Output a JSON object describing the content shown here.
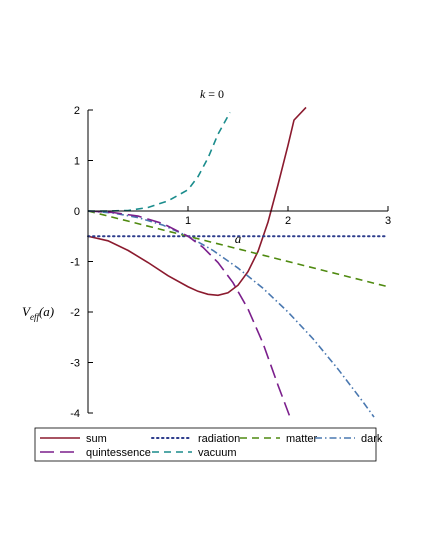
{
  "chart_data": {
    "type": "line",
    "title": "k = 0",
    "title_parts": {
      "var": "k",
      "eq": " = 0"
    },
    "xlabel": "a",
    "ylabel": "V_eff(a)",
    "ylabel_parts": {
      "base": "V",
      "sub": "eff",
      "arg": "(a)"
    },
    "xlim": [
      0,
      3
    ],
    "ylim": [
      -4,
      2
    ],
    "x_ticks": [
      {
        "value": 0,
        "label": ""
      },
      {
        "value": 1,
        "label": "1"
      },
      {
        "value": 2,
        "label": "2"
      },
      {
        "value": 3,
        "label": "3"
      }
    ],
    "y_ticks": [
      {
        "value": 2,
        "label": "2"
      },
      {
        "value": 1,
        "label": "1"
      },
      {
        "value": 0,
        "label": "0"
      },
      {
        "value": -1,
        "label": "-1"
      },
      {
        "value": -2,
        "label": "-2"
      },
      {
        "value": -3,
        "label": "-3"
      },
      {
        "value": -4,
        "label": "-4"
      }
    ],
    "grid": false,
    "legend_position": "bottom",
    "series": [
      {
        "name": "sum",
        "color": "#8b1a2e",
        "style": "solid",
        "points": [
          [
            0,
            -0.5
          ],
          [
            0.2,
            -0.59
          ],
          [
            0.4,
            -0.78
          ],
          [
            0.6,
            -1.02
          ],
          [
            0.8,
            -1.28
          ],
          [
            1.0,
            -1.5
          ],
          [
            1.1,
            -1.59
          ],
          [
            1.2,
            -1.65
          ],
          [
            1.3,
            -1.67
          ],
          [
            1.4,
            -1.62
          ],
          [
            1.5,
            -1.47
          ],
          [
            1.6,
            -1.2
          ],
          [
            1.7,
            -0.8
          ],
          [
            1.8,
            -0.22
          ],
          [
            1.9,
            0.52
          ],
          [
            2.0,
            1.3
          ],
          [
            2.06,
            1.8
          ],
          [
            2.18,
            2.05
          ]
        ]
      },
      {
        "name": "radiation",
        "color": "#2c3c8c",
        "style": "dotted",
        "points": [
          [
            0,
            -0.5
          ],
          [
            3,
            -0.5
          ]
        ]
      },
      {
        "name": "matter",
        "color": "#4f8a10",
        "style": "dashed",
        "points": [
          [
            0,
            0
          ],
          [
            3,
            -1.5
          ]
        ]
      },
      {
        "name": "dark",
        "color": "#4a78b0",
        "style": "dashdot",
        "points": [
          [
            0,
            0
          ],
          [
            0.25,
            -0.04
          ],
          [
            0.5,
            -0.13
          ],
          [
            0.75,
            -0.28
          ],
          [
            1.0,
            -0.5
          ],
          [
            1.25,
            -0.78
          ],
          [
            1.5,
            -1.13
          ],
          [
            1.75,
            -1.53
          ],
          [
            2.0,
            -2.0
          ],
          [
            2.25,
            -2.53
          ],
          [
            2.5,
            -3.13
          ],
          [
            2.75,
            -3.78
          ],
          [
            2.86,
            -4.08
          ]
        ]
      },
      {
        "name": "quintessence",
        "color": "#7b1f8c",
        "style": "longdash",
        "points": [
          [
            0,
            0
          ],
          [
            0.25,
            -0.03
          ],
          [
            0.5,
            -0.1
          ],
          [
            0.75,
            -0.25
          ],
          [
            1.0,
            -0.5
          ],
          [
            1.15,
            -0.72
          ],
          [
            1.3,
            -1.02
          ],
          [
            1.45,
            -1.42
          ],
          [
            1.6,
            -1.94
          ],
          [
            1.75,
            -2.62
          ],
          [
            1.9,
            -3.45
          ],
          [
            2.02,
            -4.08
          ]
        ]
      },
      {
        "name": "vacuum",
        "color": "#1a8c8c",
        "style": "dashed",
        "points": [
          [
            0,
            0
          ],
          [
            0.2,
            0.0
          ],
          [
            0.4,
            0.01
          ],
          [
            0.6,
            0.07
          ],
          [
            0.8,
            0.2
          ],
          [
            1.0,
            0.42
          ],
          [
            1.1,
            0.68
          ],
          [
            1.2,
            1.05
          ],
          [
            1.3,
            1.52
          ],
          [
            1.42,
            1.95
          ]
        ]
      }
    ]
  }
}
